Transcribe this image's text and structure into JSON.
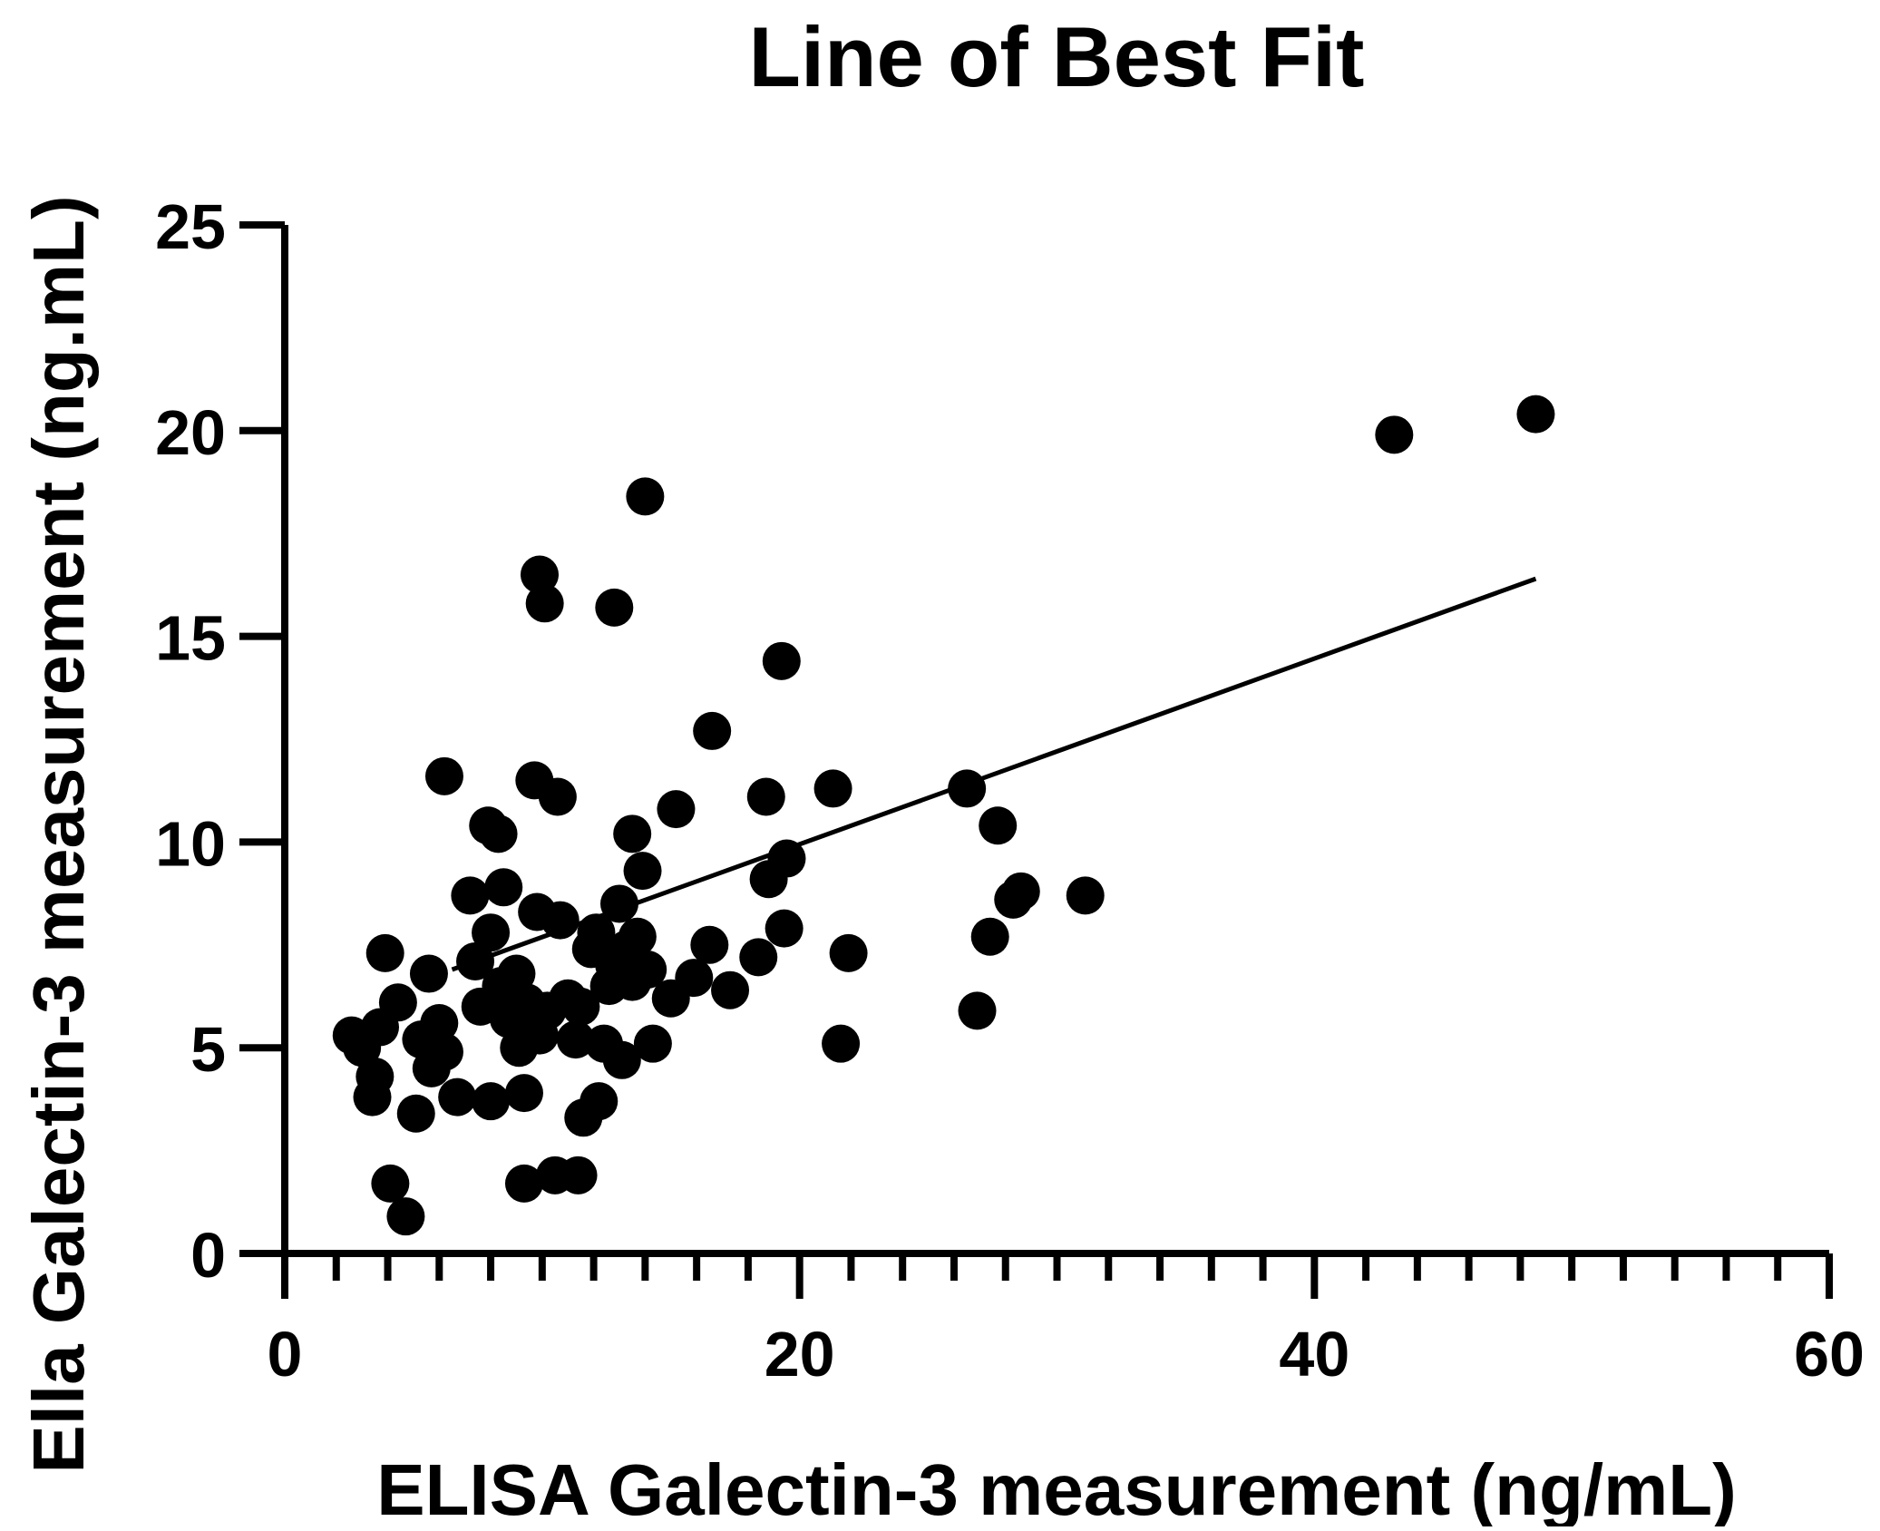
{
  "chart_data": {
    "type": "scatter",
    "title": "Line of Best Fit",
    "xlabel": "ELISA Galectin-3 measurement (ng/mL)",
    "ylabel": "Ella Galectin-3 measurement (ng.mL)",
    "xlim": [
      0,
      60
    ],
    "ylim": [
      0,
      25
    ],
    "xticks": [
      0,
      20,
      40,
      60
    ],
    "xtick_labels": [
      "0",
      "20",
      "40",
      "60"
    ],
    "yticks": [
      0,
      5,
      10,
      15,
      20,
      25
    ],
    "ytick_labels": [
      "0",
      "5",
      "10",
      "15",
      "20",
      "25"
    ],
    "x_minor_step": 2,
    "grid": false,
    "legend": "none",
    "colors": {
      "points": "#000000",
      "line": "#000000",
      "axes": "#000000"
    },
    "fit_line": {
      "x": [
        6.5,
        48.6
      ],
      "y": [
        6.9,
        16.4
      ]
    },
    "points": [
      {
        "x": 2.6,
        "y": 5.3
      },
      {
        "x": 3.0,
        "y": 5.0
      },
      {
        "x": 3.5,
        "y": 4.3
      },
      {
        "x": 3.4,
        "y": 3.8
      },
      {
        "x": 3.7,
        "y": 5.5
      },
      {
        "x": 3.9,
        "y": 7.3
      },
      {
        "x": 4.4,
        "y": 6.1
      },
      {
        "x": 4.1,
        "y": 1.7
      },
      {
        "x": 4.7,
        "y": 0.9
      },
      {
        "x": 5.1,
        "y": 3.4
      },
      {
        "x": 5.3,
        "y": 5.2
      },
      {
        "x": 5.6,
        "y": 6.8
      },
      {
        "x": 5.7,
        "y": 4.5
      },
      {
        "x": 6.0,
        "y": 5.6
      },
      {
        "x": 6.2,
        "y": 4.9
      },
      {
        "x": 6.2,
        "y": 11.6
      },
      {
        "x": 6.7,
        "y": 3.8
      },
      {
        "x": 7.2,
        "y": 8.7
      },
      {
        "x": 7.4,
        "y": 7.1
      },
      {
        "x": 7.6,
        "y": 6.0
      },
      {
        "x": 7.9,
        "y": 10.4
      },
      {
        "x": 8.0,
        "y": 7.8
      },
      {
        "x": 8.0,
        "y": 3.7
      },
      {
        "x": 8.3,
        "y": 10.2
      },
      {
        "x": 8.4,
        "y": 6.5
      },
      {
        "x": 8.5,
        "y": 8.9
      },
      {
        "x": 8.7,
        "y": 5.7
      },
      {
        "x": 9.0,
        "y": 6.8
      },
      {
        "x": 9.1,
        "y": 5.0
      },
      {
        "x": 9.3,
        "y": 3.9
      },
      {
        "x": 9.4,
        "y": 6.1
      },
      {
        "x": 9.3,
        "y": 1.7
      },
      {
        "x": 9.7,
        "y": 11.5
      },
      {
        "x": 9.8,
        "y": 8.3
      },
      {
        "x": 9.9,
        "y": 5.3
      },
      {
        "x": 9.9,
        "y": 16.5
      },
      {
        "x": 10.1,
        "y": 15.8
      },
      {
        "x": 10.2,
        "y": 5.9
      },
      {
        "x": 10.5,
        "y": 1.9
      },
      {
        "x": 10.6,
        "y": 11.1
      },
      {
        "x": 10.7,
        "y": 8.1
      },
      {
        "x": 11.0,
        "y": 6.2
      },
      {
        "x": 11.3,
        "y": 5.2
      },
      {
        "x": 11.4,
        "y": 1.9
      },
      {
        "x": 11.5,
        "y": 6.0
      },
      {
        "x": 11.6,
        "y": 3.3
      },
      {
        "x": 11.9,
        "y": 7.4
      },
      {
        "x": 12.1,
        "y": 7.8
      },
      {
        "x": 12.2,
        "y": 3.7
      },
      {
        "x": 12.4,
        "y": 5.1
      },
      {
        "x": 12.6,
        "y": 6.5
      },
      {
        "x": 12.8,
        "y": 7.0
      },
      {
        "x": 12.8,
        "y": 15.7
      },
      {
        "x": 13.0,
        "y": 8.5
      },
      {
        "x": 13.1,
        "y": 4.7
      },
      {
        "x": 13.3,
        "y": 7.4
      },
      {
        "x": 13.5,
        "y": 10.2
      },
      {
        "x": 13.5,
        "y": 6.6
      },
      {
        "x": 13.7,
        "y": 7.7
      },
      {
        "x": 13.9,
        "y": 9.3
      },
      {
        "x": 14.1,
        "y": 6.9
      },
      {
        "x": 14.0,
        "y": 18.4
      },
      {
        "x": 14.3,
        "y": 5.1
      },
      {
        "x": 15.0,
        "y": 6.2
      },
      {
        "x": 15.2,
        "y": 10.8
      },
      {
        "x": 15.9,
        "y": 6.7
      },
      {
        "x": 16.5,
        "y": 7.5
      },
      {
        "x": 16.6,
        "y": 12.7
      },
      {
        "x": 17.3,
        "y": 6.4
      },
      {
        "x": 18.4,
        "y": 7.2
      },
      {
        "x": 18.7,
        "y": 11.1
      },
      {
        "x": 18.8,
        "y": 9.1
      },
      {
        "x": 19.3,
        "y": 14.4
      },
      {
        "x": 19.4,
        "y": 7.9
      },
      {
        "x": 19.5,
        "y": 9.6
      },
      {
        "x": 21.3,
        "y": 11.3
      },
      {
        "x": 21.6,
        "y": 5.1
      },
      {
        "x": 21.9,
        "y": 7.3
      },
      {
        "x": 26.5,
        "y": 11.3
      },
      {
        "x": 26.9,
        "y": 5.9
      },
      {
        "x": 27.4,
        "y": 7.7
      },
      {
        "x": 27.7,
        "y": 10.4
      },
      {
        "x": 28.3,
        "y": 8.6
      },
      {
        "x": 28.6,
        "y": 8.8
      },
      {
        "x": 31.1,
        "y": 8.7
      },
      {
        "x": 43.1,
        "y": 19.9
      },
      {
        "x": 48.6,
        "y": 20.4
      }
    ]
  }
}
